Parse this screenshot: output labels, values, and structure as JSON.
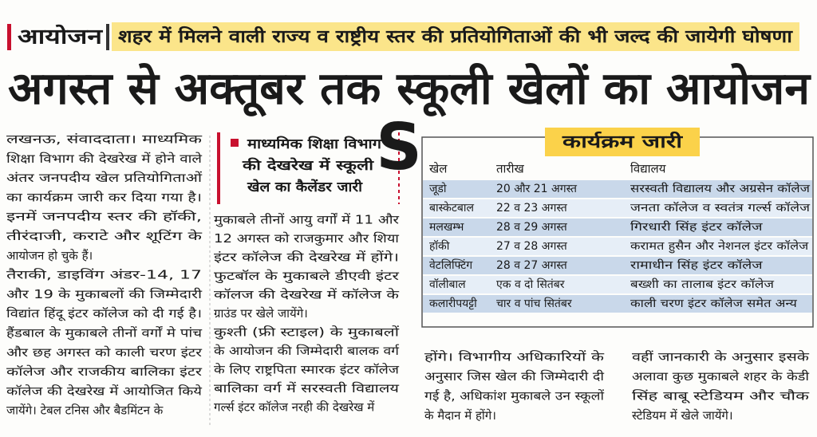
{
  "header": {
    "kicker": "आयोजन",
    "subhead": "शहर में मिलने वाली राज्य व राष्ट्रीय स्तर की प्रतियोगिताओं की भी जल्द की जायेगी घोषणा",
    "headline": "अगस्त से अक्तूबर तक स्कूली खेलों का आयोजन"
  },
  "watermark": "S",
  "columns": [
    {
      "lines": [
        "लखनऊ, संवाददाता। माध्यमिक",
        "शिक्षा विभाग की देखरेख में होने वाले",
        "अंतर जनपदीय खेल प्रतियोगिताओं",
        "का कार्यक्रम जारी कर दिया गया है।",
        "इनमें जनपदीय स्तर की हॉकी,",
        "तीरंदाजी, कराटे और शूटिंग के",
        "आयोजन हो चुके हैं।",
        "तैराकी, डाइविंग अंडर-14, 17",
        "और 19 के मुकाबलों की जिम्मेदारी",
        "विद्यांत हिंदू इंटर कॉलेज को दी गई है।",
        "हैंडबाल के मुकाबले तीनों वर्गों मे पांच",
        "और छह अगस्त को काली चरण इंटर",
        "कॉलेज और राजकीय बालिका इंटर",
        "कॉलेज की देखरेख में आयोजित किये",
        "जायेंगे। टेबल टनिस और बैडमिंटन के"
      ]
    },
    {
      "lines": [
        "मुकाबले तीनों आयु वर्गों में 11 और",
        "12 अगस्त को राजकुमार और शिया",
        "इंटर कॉलेज की देखरेख में होंगे।",
        "फुटबॉल के मुकाबले डीएवी इंटर",
        "कॉलज की देखरेख में कॉलेज के",
        "ग्राउंड पर खेले जायेंगे।",
        "कुश्ती (फ्री स्टाइल) के मुकाबलों",
        "के आयोजन की जिम्मेदारी बालक वर्ग",
        "के लिए राष्ट्रपिता स्मारक इंटर कॉलेज",
        "बालिका वर्ग में सरस्वती विद्यालय",
        "गर्ल्स इंटर कॉलेज नरही की देखरेख में"
      ]
    },
    {
      "lines": [
        "होंगे। विभागीय अधिकारियों के",
        "अनुसार जिस खेल की जिम्मेदारी दी",
        "गई है, अधिकांश मुकाबले उन स्कूलों",
        "के मैदान में होंगे।"
      ]
    },
    {
      "lines": [
        "वहीं जानकारी के अनुसार इसके",
        "अलावा कुछ मुकाबले शहर के केडी",
        "सिंह बाबू स्टेडियम और चौक",
        "स्टेडियम में खेले जायेंगे।"
      ]
    }
  ],
  "sidebar": {
    "lines": [
      "माध्यमिक शिक्षा विभाग",
      "की देखरेख में स्कूली",
      "खेल का कैलेंडर जारी"
    ]
  },
  "table": {
    "title": "कार्यक्रम जारी",
    "headers": [
      "खेल",
      "तारीख",
      "विद्यालय"
    ],
    "rows": [
      [
        "जूडो",
        "20 और 21 अगस्त",
        "सरस्वती विद्यालय और अग्रसेन कॉलेज"
      ],
      [
        "बास्केटबाल",
        "22 व 23 अगस्त",
        "जनता कॉलेज व स्वतंत्र गर्ल्स कॉलेज"
      ],
      [
        "मलखम्भ",
        "28 व 29 अगस्त",
        "गिरधारी सिंह इंटर कॉलेज"
      ],
      [
        "हॉकी",
        "27 व 28 अगस्त",
        "करामत हुसैन और नेशनल इंटर कॉलेज"
      ],
      [
        "वेटलिफ्टिंग",
        "28 व 27 अगस्त",
        "रामाधीन सिंह इंटर कॉलेज"
      ],
      [
        "वॉलीबाल",
        "एक व दो सितंबर",
        "बख्शी का तालाब इंटर कॉलेज"
      ],
      [
        "कलारीपयट्टी",
        "चार व पांच सितंबर",
        "काली चरण इंटर कॉलेज समेत अन्य"
      ]
    ]
  }
}
